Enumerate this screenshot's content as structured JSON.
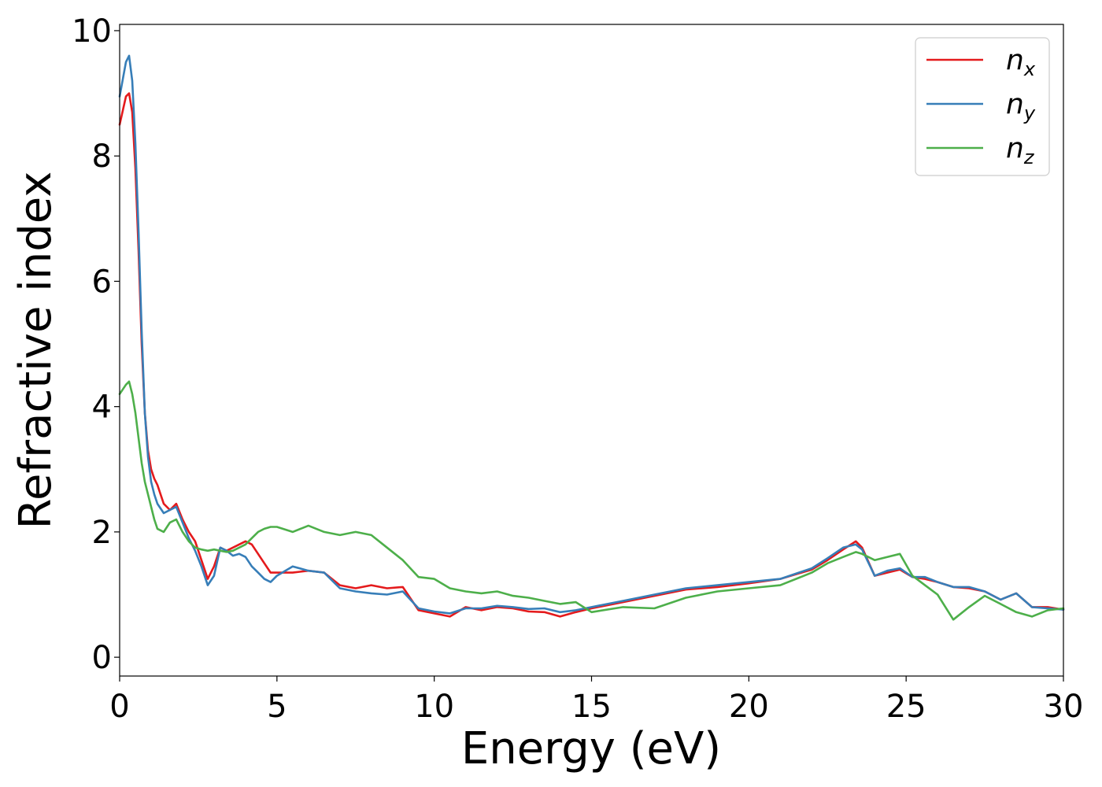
{
  "chart_data": {
    "type": "line",
    "xlabel": "Energy (eV)",
    "ylabel": "Refractive index",
    "xlim": [
      0,
      30
    ],
    "ylim": [
      -0.3,
      10.1
    ],
    "xticks": [
      "0",
      "5",
      "10",
      "15",
      "20",
      "25",
      "30"
    ],
    "yticks": [
      "0",
      "2",
      "4",
      "6",
      "8",
      "10"
    ],
    "grid": false,
    "legend_position": "top-right",
    "series": [
      {
        "name": "n",
        "sub": "x",
        "color": "#e41a1c",
        "x": [
          0,
          0.2,
          0.3,
          0.4,
          0.5,
          0.6,
          0.7,
          0.8,
          0.9,
          1.0,
          1.1,
          1.2,
          1.4,
          1.6,
          1.8,
          2.0,
          2.2,
          2.4,
          2.6,
          2.8,
          3.0,
          3.2,
          3.4,
          3.6,
          3.8,
          4.0,
          4.2,
          4.4,
          4.6,
          4.8,
          5.0,
          5.5,
          6.0,
          6.5,
          7.0,
          7.5,
          8.0,
          8.5,
          9.0,
          9.5,
          10.0,
          10.5,
          11.0,
          11.5,
          12.0,
          12.5,
          13.0,
          13.5,
          14.0,
          14.5,
          15.0,
          16.0,
          17.0,
          18.0,
          19.0,
          20.0,
          21.0,
          22.0,
          22.5,
          23.0,
          23.4,
          23.6,
          24.0,
          24.4,
          24.8,
          25.2,
          25.6,
          26.0,
          26.5,
          27.0,
          27.5,
          28.0,
          28.5,
          29.0,
          29.5,
          30.0
        ],
        "y": [
          8.5,
          8.95,
          9.0,
          8.7,
          7.8,
          6.5,
          5.0,
          3.9,
          3.3,
          3.0,
          2.85,
          2.75,
          2.45,
          2.35,
          2.45,
          2.2,
          2.0,
          1.85,
          1.55,
          1.25,
          1.45,
          1.75,
          1.7,
          1.75,
          1.8,
          1.85,
          1.8,
          1.65,
          1.5,
          1.35,
          1.35,
          1.35,
          1.38,
          1.35,
          1.15,
          1.1,
          1.15,
          1.1,
          1.12,
          0.75,
          0.7,
          0.65,
          0.8,
          0.75,
          0.8,
          0.78,
          0.73,
          0.72,
          0.65,
          0.72,
          0.78,
          0.88,
          0.98,
          1.08,
          1.12,
          1.18,
          1.25,
          1.4,
          1.55,
          1.72,
          1.85,
          1.75,
          1.3,
          1.35,
          1.4,
          1.28,
          1.25,
          1.2,
          1.12,
          1.1,
          1.05,
          0.92,
          1.02,
          0.8,
          0.8,
          0.76
        ]
      },
      {
        "name": "n",
        "sub": "y",
        "color": "#377eb8",
        "x": [
          0,
          0.2,
          0.3,
          0.4,
          0.5,
          0.6,
          0.7,
          0.8,
          0.9,
          1.0,
          1.1,
          1.2,
          1.4,
          1.6,
          1.8,
          2.0,
          2.2,
          2.4,
          2.6,
          2.8,
          3.0,
          3.2,
          3.4,
          3.6,
          3.8,
          4.0,
          4.2,
          4.4,
          4.6,
          4.8,
          5.0,
          5.5,
          6.0,
          6.5,
          7.0,
          7.5,
          8.0,
          8.5,
          9.0,
          9.5,
          10.0,
          10.5,
          11.0,
          11.5,
          12.0,
          12.5,
          13.0,
          13.5,
          14.0,
          14.5,
          15.0,
          16.0,
          17.0,
          18.0,
          19.0,
          20.0,
          21.0,
          22.0,
          22.5,
          23.0,
          23.4,
          23.6,
          24.0,
          24.4,
          24.8,
          25.2,
          25.6,
          26.0,
          26.5,
          27.0,
          27.5,
          28.0,
          28.5,
          29.0,
          29.5,
          30.0
        ],
        "y": [
          8.95,
          9.5,
          9.6,
          9.2,
          8.2,
          6.8,
          5.2,
          3.9,
          3.2,
          2.8,
          2.6,
          2.45,
          2.3,
          2.35,
          2.4,
          2.15,
          1.9,
          1.7,
          1.45,
          1.15,
          1.3,
          1.75,
          1.7,
          1.62,
          1.65,
          1.6,
          1.45,
          1.35,
          1.25,
          1.2,
          1.3,
          1.45,
          1.38,
          1.35,
          1.1,
          1.05,
          1.02,
          1.0,
          1.05,
          0.78,
          0.73,
          0.7,
          0.78,
          0.78,
          0.82,
          0.8,
          0.77,
          0.78,
          0.72,
          0.75,
          0.8,
          0.9,
          1.0,
          1.1,
          1.15,
          1.2,
          1.25,
          1.42,
          1.58,
          1.75,
          1.8,
          1.72,
          1.3,
          1.38,
          1.42,
          1.28,
          1.28,
          1.2,
          1.12,
          1.12,
          1.05,
          0.92,
          1.02,
          0.8,
          0.78,
          0.76
        ]
      },
      {
        "name": "n",
        "sub": "z",
        "color": "#4daf4a",
        "x": [
          0,
          0.2,
          0.3,
          0.4,
          0.5,
          0.6,
          0.7,
          0.8,
          0.9,
          1.0,
          1.1,
          1.2,
          1.4,
          1.6,
          1.8,
          2.0,
          2.2,
          2.4,
          2.6,
          2.8,
          3.0,
          3.2,
          3.4,
          3.6,
          3.8,
          4.0,
          4.2,
          4.4,
          4.6,
          4.8,
          5.0,
          5.5,
          6.0,
          6.5,
          7.0,
          7.5,
          8.0,
          8.5,
          9.0,
          9.5,
          10.0,
          10.5,
          11.0,
          11.5,
          12.0,
          12.5,
          13.0,
          13.5,
          14.0,
          14.5,
          15.0,
          16.0,
          17.0,
          18.0,
          19.0,
          20.0,
          21.0,
          22.0,
          22.5,
          23.0,
          23.4,
          23.6,
          24.0,
          24.4,
          24.8,
          25.2,
          25.6,
          26.0,
          26.5,
          27.0,
          27.5,
          28.0,
          28.5,
          29.0,
          29.5,
          30.0
        ],
        "y": [
          4.2,
          4.35,
          4.4,
          4.2,
          3.9,
          3.5,
          3.1,
          2.8,
          2.6,
          2.4,
          2.2,
          2.05,
          2.0,
          2.15,
          2.2,
          2.0,
          1.85,
          1.75,
          1.72,
          1.7,
          1.72,
          1.7,
          1.68,
          1.7,
          1.75,
          1.8,
          1.9,
          2.0,
          2.05,
          2.08,
          2.08,
          2.0,
          2.1,
          2.0,
          1.95,
          2.0,
          1.95,
          1.75,
          1.55,
          1.28,
          1.25,
          1.1,
          1.05,
          1.02,
          1.05,
          0.98,
          0.95,
          0.9,
          0.85,
          0.88,
          0.72,
          0.8,
          0.78,
          0.95,
          1.05,
          1.1,
          1.15,
          1.35,
          1.5,
          1.6,
          1.68,
          1.65,
          1.55,
          1.6,
          1.65,
          1.3,
          1.15,
          1.0,
          0.6,
          0.8,
          0.98,
          0.85,
          0.72,
          0.65,
          0.75,
          0.78
        ]
      }
    ]
  }
}
